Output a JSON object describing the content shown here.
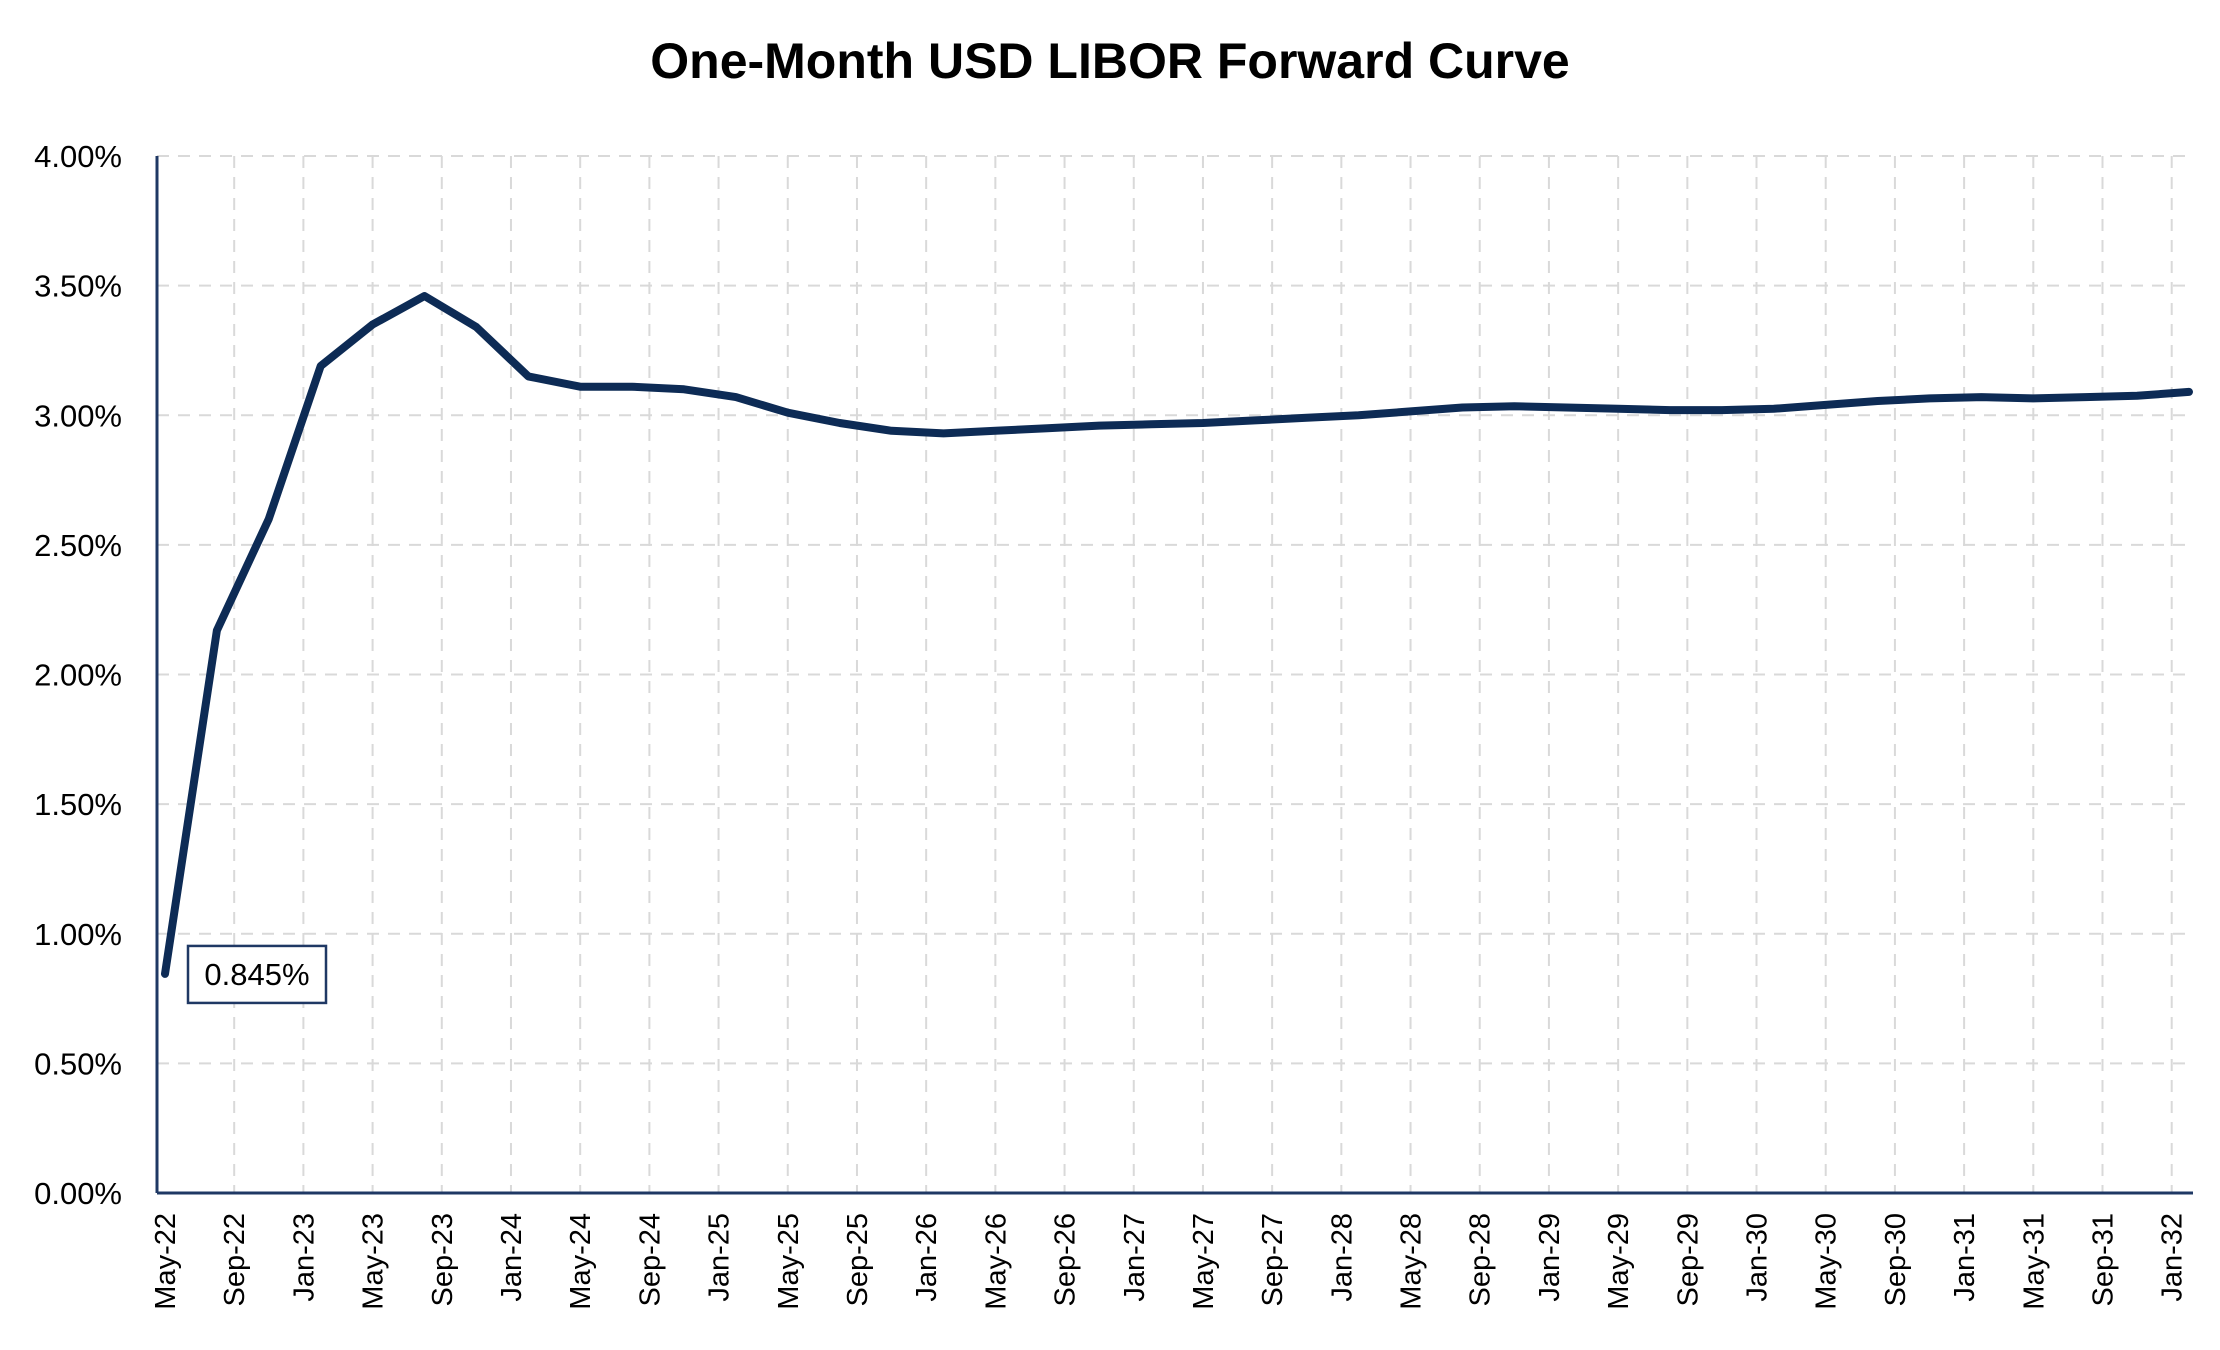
{
  "chart_data": {
    "type": "line",
    "title": "One-Month USD LIBOR Forward Curve",
    "xlabel": "",
    "ylabel": "",
    "ylim": [
      0,
      4
    ],
    "yticks": [
      "0.00%",
      "0.50%",
      "1.00%",
      "1.50%",
      "2.00%",
      "2.50%",
      "3.00%",
      "3.50%",
      "4.00%"
    ],
    "xticks": [
      "May-22",
      "Sep-22",
      "Jan-23",
      "May-23",
      "Sep-23",
      "Jan-24",
      "May-24",
      "Sep-24",
      "Jan-25",
      "May-25",
      "Sep-25",
      "Jan-26",
      "May-26",
      "Sep-26",
      "Jan-27",
      "May-27",
      "Sep-27",
      "Jan-28",
      "May-28",
      "Sep-28",
      "Jan-29",
      "May-29",
      "Sep-29",
      "Jan-30",
      "May-30",
      "Sep-30",
      "Jan-31",
      "May-31",
      "Sep-31",
      "Jan-32"
    ],
    "grid": true,
    "line_color": "#0d2b55",
    "series": [
      {
        "x": [
          "May-22",
          "Aug-22",
          "Nov-22",
          "Feb-23",
          "May-23",
          "Aug-23",
          "Nov-23",
          "Feb-24",
          "May-24",
          "Aug-24",
          "Nov-24",
          "Feb-25",
          "May-25",
          "Aug-25",
          "Nov-25",
          "Feb-26",
          "May-26",
          "Aug-26",
          "Nov-26",
          "Feb-27",
          "May-27",
          "Aug-27",
          "Nov-27",
          "Feb-28",
          "May-28",
          "Aug-28",
          "Nov-28",
          "Feb-29",
          "May-29",
          "Aug-29",
          "Nov-29",
          "Feb-30",
          "May-30",
          "Aug-30",
          "Nov-30",
          "Feb-31",
          "May-31",
          "Aug-31",
          "Nov-31",
          "Feb-32"
        ],
        "values": [
          0.845,
          2.17,
          2.6,
          3.19,
          3.35,
          3.46,
          3.34,
          3.15,
          3.11,
          3.11,
          3.1,
          3.07,
          3.01,
          2.97,
          2.94,
          2.93,
          2.94,
          2.95,
          2.96,
          2.965,
          2.97,
          2.98,
          2.99,
          3.0,
          3.015,
          3.03,
          3.035,
          3.03,
          3.025,
          3.02,
          3.02,
          3.025,
          3.04,
          3.055,
          3.065,
          3.07,
          3.065,
          3.07,
          3.075,
          3.09
        ]
      }
    ],
    "annotation": {
      "label": "0.845%"
    }
  }
}
